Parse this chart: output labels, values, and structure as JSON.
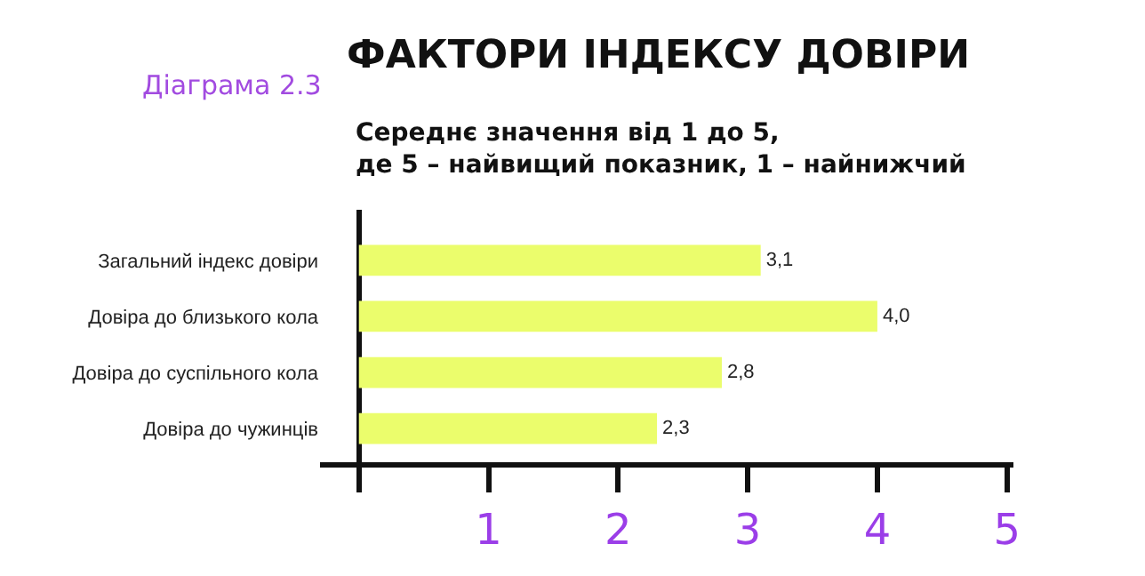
{
  "chart_data": {
    "type": "bar",
    "orientation": "horizontal",
    "title": "ФАКТОРИ ІНДЕКСУ ДОВІРИ",
    "subtitle": "Середнє значення від 1 до 5,\nде 5 – найвищий показник, 1 – найнижчий",
    "annotations": [
      "Діаграма 2.3"
    ],
    "categories": [
      "Загальний індекс довіри",
      "Довіра до близького кола",
      "Довіра до суспільного кола",
      "Довіра до чужинців"
    ],
    "values": [
      3.1,
      4.0,
      2.8,
      2.3
    ],
    "value_labels": [
      "3,1",
      "4,0",
      "2,8",
      "2,3"
    ],
    "color": "#ebfd6c",
    "xlim": [
      -0.3,
      5.05
    ],
    "xticks": [
      {
        "value": 0,
        "label": null
      },
      1,
      2,
      3,
      4,
      5
    ]
  }
}
